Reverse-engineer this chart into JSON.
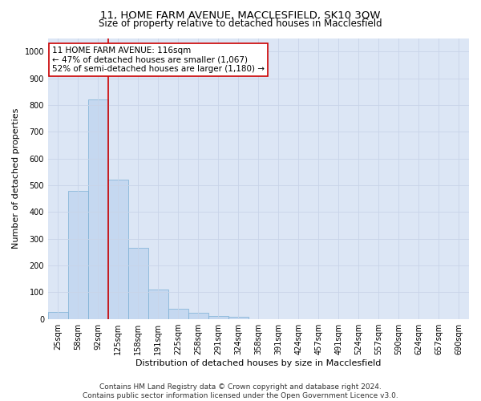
{
  "title1": "11, HOME FARM AVENUE, MACCLESFIELD, SK10 3QW",
  "title2": "Size of property relative to detached houses in Macclesfield",
  "xlabel": "Distribution of detached houses by size in Macclesfield",
  "ylabel": "Number of detached properties",
  "bar_labels": [
    "25sqm",
    "58sqm",
    "92sqm",
    "125sqm",
    "158sqm",
    "191sqm",
    "225sqm",
    "258sqm",
    "291sqm",
    "324sqm",
    "358sqm",
    "391sqm",
    "424sqm",
    "457sqm",
    "491sqm",
    "524sqm",
    "557sqm",
    "590sqm",
    "624sqm",
    "657sqm",
    "690sqm"
  ],
  "bar_values": [
    27,
    480,
    820,
    520,
    265,
    110,
    37,
    22,
    12,
    8,
    0,
    0,
    0,
    0,
    0,
    0,
    0,
    0,
    0,
    0,
    0
  ],
  "bar_color": "#c5d8f0",
  "bar_edge_color": "#7bafd4",
  "ylim": [
    0,
    1050
  ],
  "yticks": [
    0,
    100,
    200,
    300,
    400,
    500,
    600,
    700,
    800,
    900,
    1000
  ],
  "vline_index": 2.5,
  "vline_color": "#cc0000",
  "annotation_text": "11 HOME FARM AVENUE: 116sqm\n← 47% of detached houses are smaller (1,067)\n52% of semi-detached houses are larger (1,180) →",
  "annotation_box_color": "#ffffff",
  "annotation_box_edgecolor": "#cc0000",
  "grid_color": "#c8d4e8",
  "bg_color": "#dce6f5",
  "footer_text": "Contains HM Land Registry data © Crown copyright and database right 2024.\nContains public sector information licensed under the Open Government Licence v3.0.",
  "title1_fontsize": 9.5,
  "title2_fontsize": 8.5,
  "xlabel_fontsize": 8,
  "ylabel_fontsize": 8,
  "tick_fontsize": 7,
  "annotation_fontsize": 7.5,
  "footer_fontsize": 6.5
}
